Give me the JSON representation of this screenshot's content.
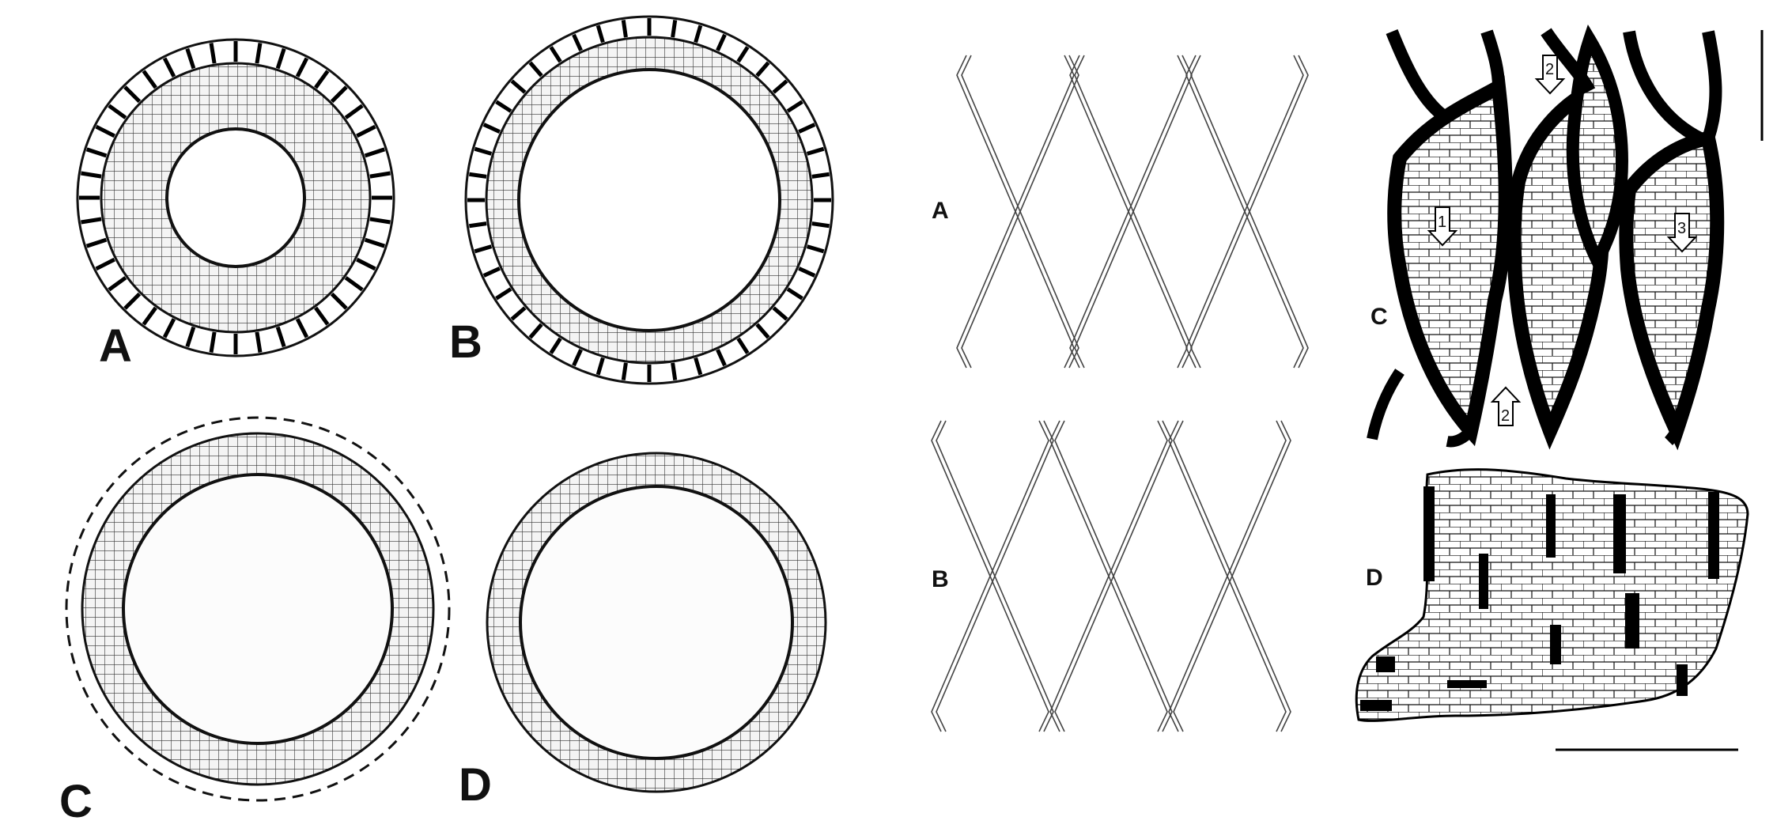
{
  "left_figure": {
    "panels": [
      {
        "label": "A",
        "type": "ring-with-blocks"
      },
      {
        "label": "B",
        "type": "ring-with-blocks"
      },
      {
        "label": "C",
        "type": "ring-dashed-outline"
      },
      {
        "label": "D",
        "type": "ring"
      }
    ]
  },
  "middle_figure": {
    "panels": [
      {
        "label": "A",
        "type": "lattice"
      },
      {
        "label": "B",
        "type": "lattice"
      }
    ]
  },
  "right_figure": {
    "panels": [
      {
        "label": "C",
        "type": "cell-lenses",
        "markers": [
          "1",
          "2",
          "3",
          "2"
        ]
      },
      {
        "label": "D",
        "type": "cell-block"
      }
    ]
  }
}
